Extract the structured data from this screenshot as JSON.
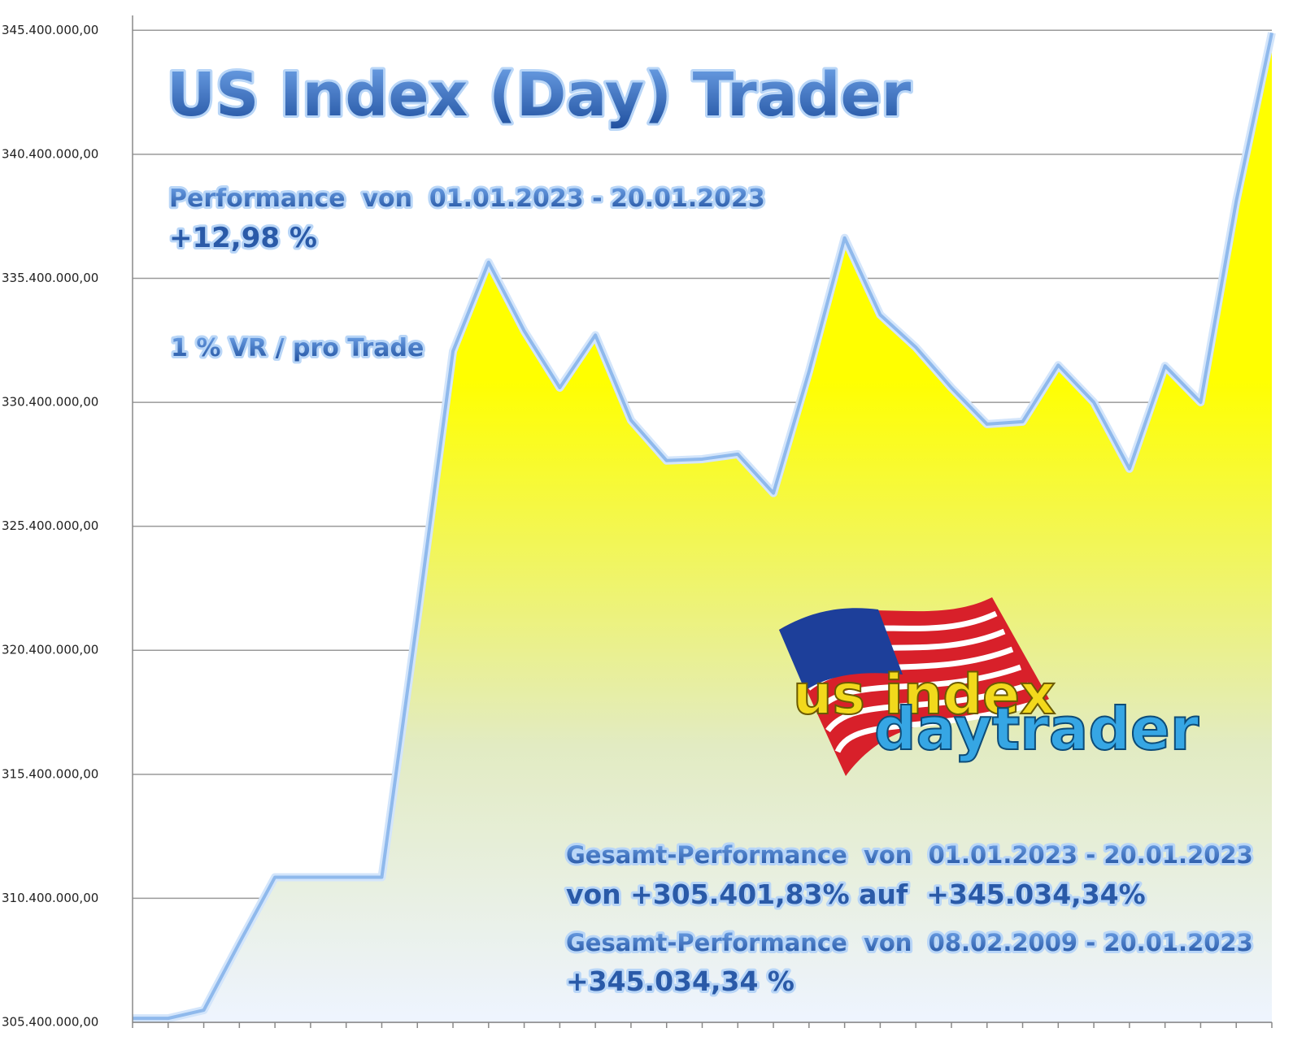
{
  "chart_data": {
    "type": "area",
    "title": "US Index (Day) Trader",
    "annotations": [
      "Performance  von  01.01.2023 - 20.01.2023",
      "+12,98 %",
      "1 % VR / pro Trade",
      "Gesamt-Performance  von  01.01.2023 - 20.01.2023",
      "von +305.401,83% auf  +345.034,34%",
      "Gesamt-Performance  von  08.02.2009 - 20.01.2023",
      "+345.034,34 %"
    ],
    "logo": [
      "us index",
      "daytrader"
    ],
    "categories": [
      null,
      null,
      null,
      null,
      null,
      null,
      null,
      null,
      null,
      null,
      null,
      null,
      null,
      null,
      null,
      null,
      null,
      null,
      null,
      null,
      null,
      null,
      null,
      null,
      null,
      null,
      null,
      null,
      null,
      null,
      null,
      null,
      null
    ],
    "values": [
      305560000,
      305560000,
      305890000,
      308600000,
      311250000,
      311250000,
      311250000,
      311250000,
      321680000,
      332460000,
      336050000,
      333280000,
      330990000,
      333110000,
      329680000,
      328050000,
      328110000,
      328310000,
      326740000,
      331640000,
      337030000,
      333930000,
      332620000,
      330990000,
      329520000,
      329620000,
      331900000,
      330400000,
      327720000,
      331870000,
      330400000,
      338510000,
      345300000
    ],
    "line_color": "#8fb9ec",
    "fill_colors": [
      "#ffff00",
      "#e2ebc2",
      "#eef4ff"
    ],
    "ylim": [
      305400000,
      346000000
    ],
    "yticks": [
      {
        "value": 305400000,
        "label": "305.400.000,00"
      },
      {
        "value": 310400000,
        "label": "310.400.000,00"
      },
      {
        "value": 315400000,
        "label": "315.400.000,00"
      },
      {
        "value": 320400000,
        "label": "320.400.000,00"
      },
      {
        "value": 325400000,
        "label": "325.400.000,00"
      },
      {
        "value": 330400000,
        "label": "330.400.000,00"
      },
      {
        "value": 335400000,
        "label": "335.400.000,00"
      },
      {
        "value": 340400000,
        "label": "340.400.000,00"
      },
      {
        "value": 345400000,
        "label": "345.400.000,00"
      }
    ],
    "grid": true
  }
}
